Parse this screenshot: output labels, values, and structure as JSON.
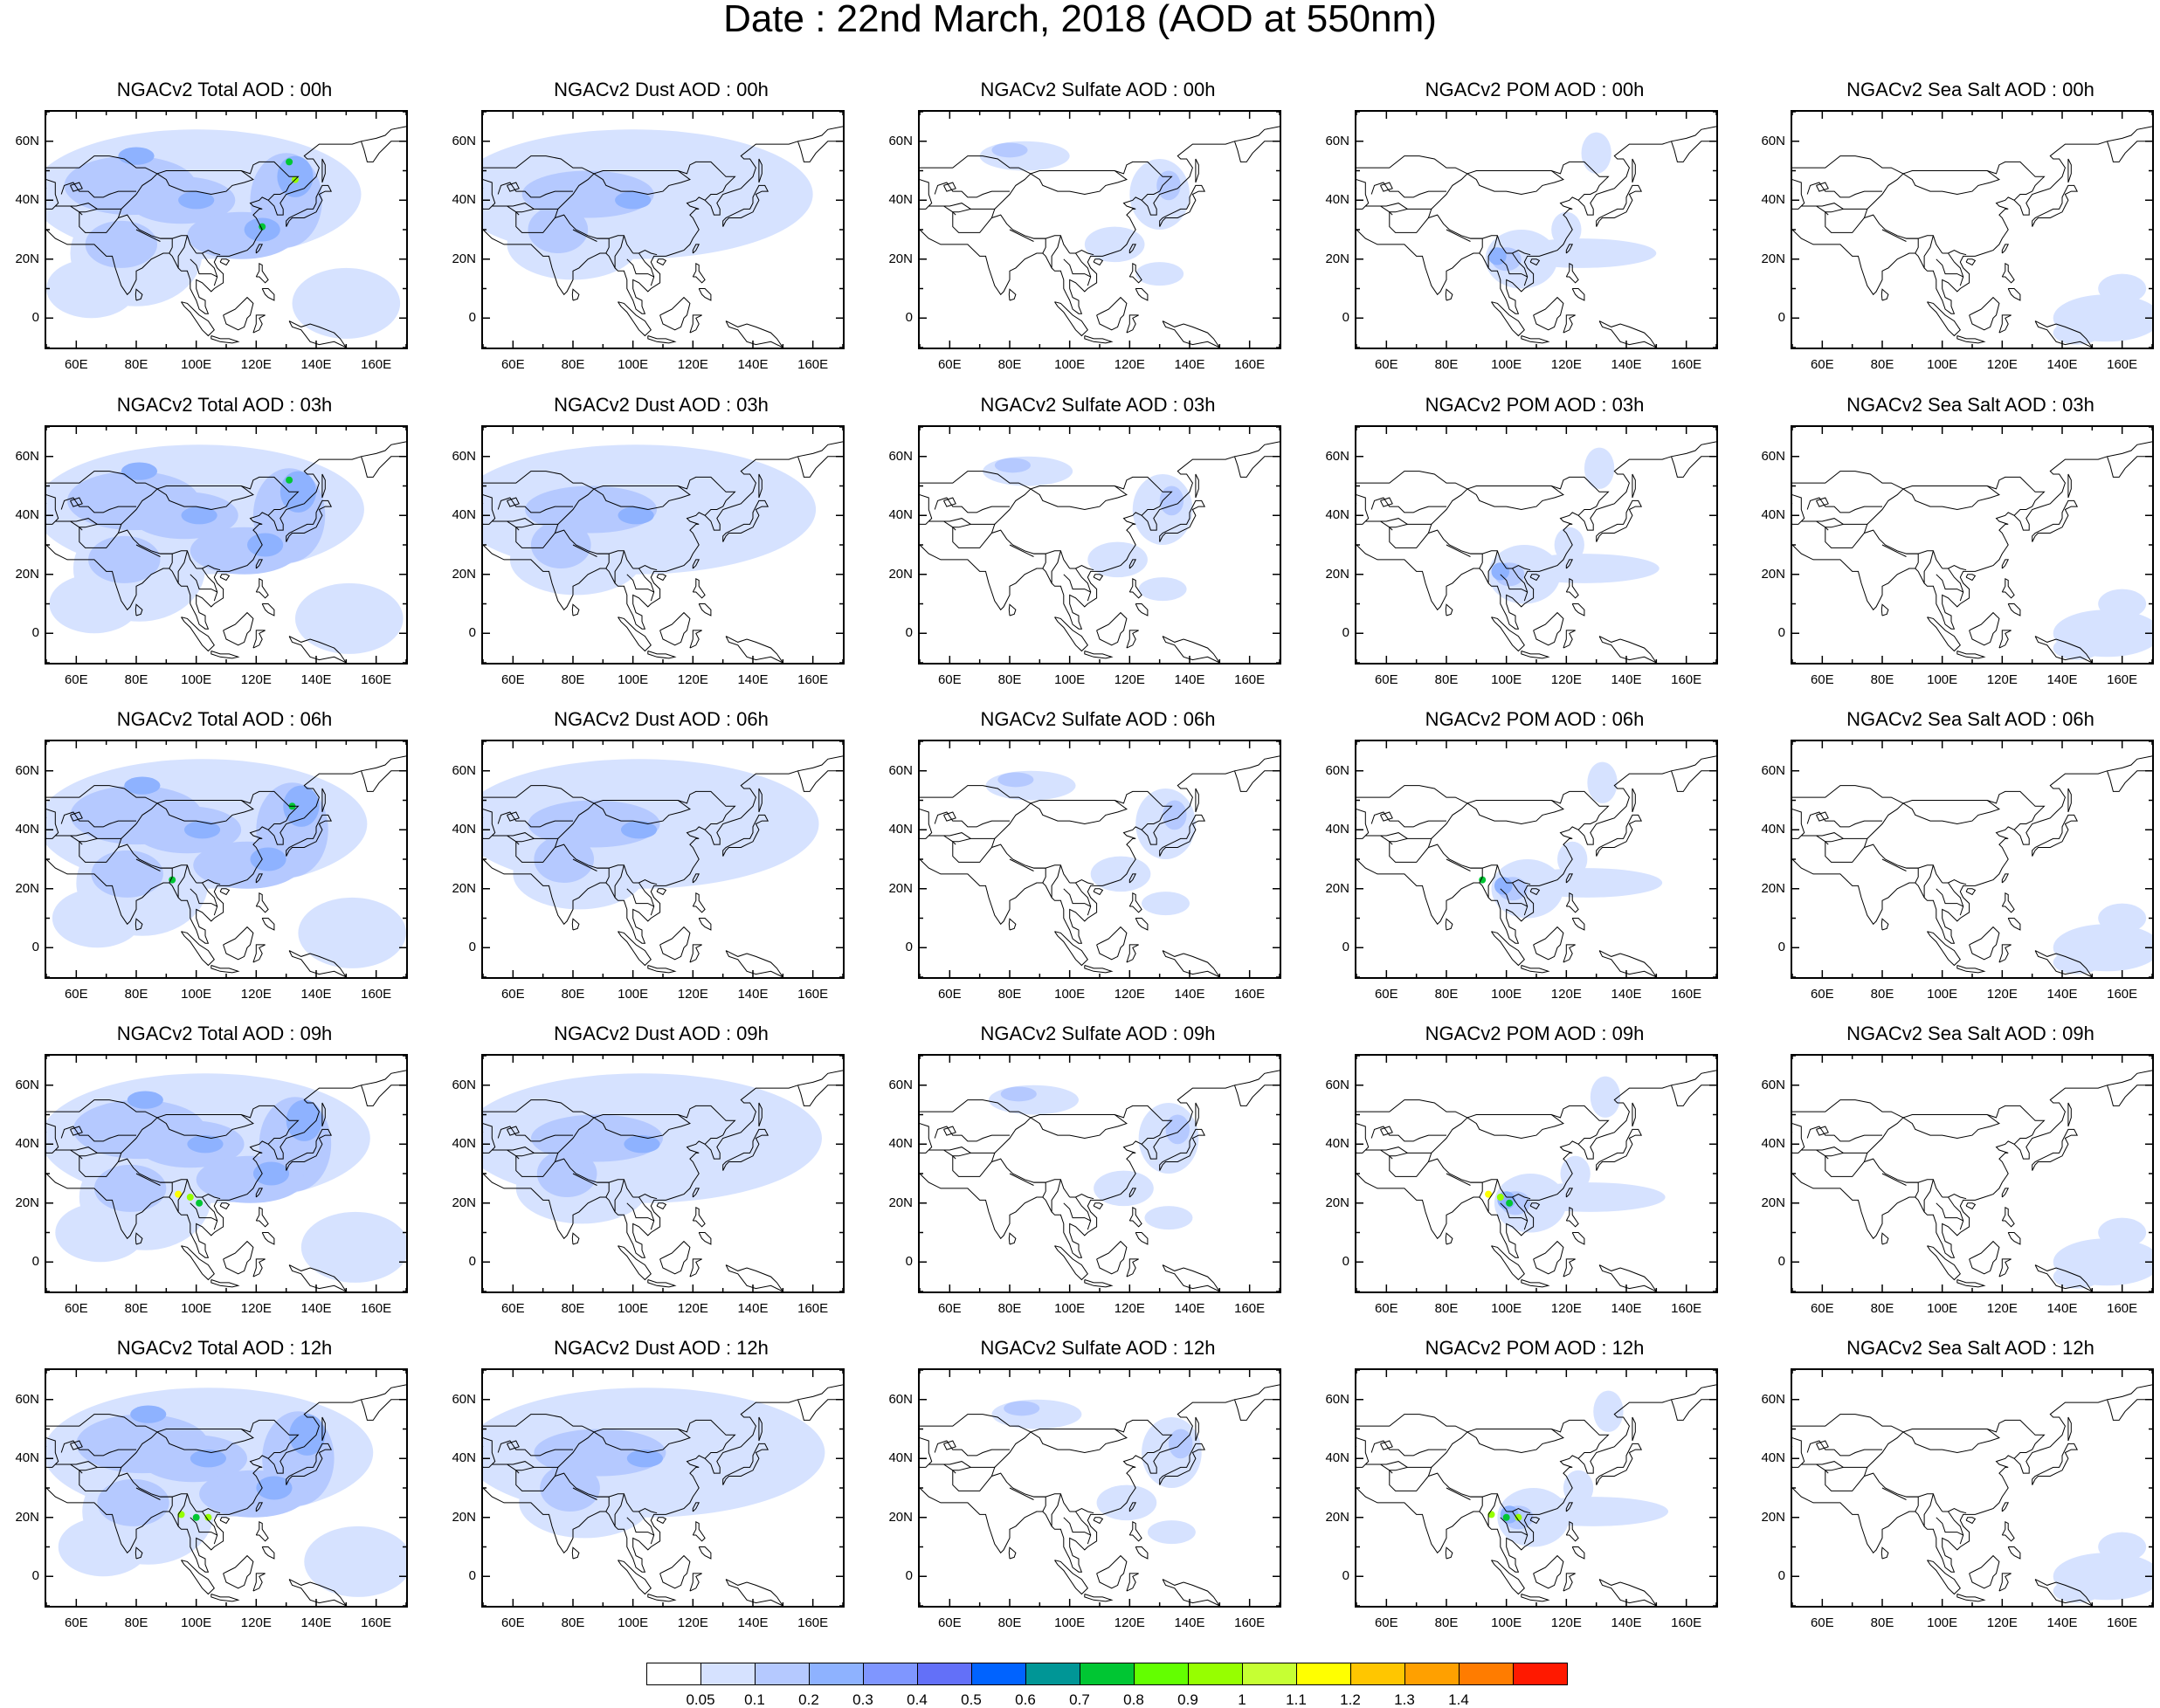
{
  "title": "Date : 22nd March, 2018 (AOD at 550nm)",
  "lat_labels": [
    "60N",
    "40N",
    "20N",
    "0"
  ],
  "lon_labels": [
    "60E",
    "80E",
    "100E",
    "120E",
    "140E",
    "160E"
  ],
  "map_extent": {
    "lon_min": 50,
    "lon_max": 170,
    "lat_min": -10,
    "lat_max": 70
  },
  "panel_titles": [
    [
      "NGACv2 Total AOD : 00h",
      "NGACv2 Dust AOD : 00h",
      "NGACv2 Sulfate AOD : 00h",
      "NGACv2 POM AOD : 00h",
      "NGACv2 Sea Salt AOD : 00h"
    ],
    [
      "NGACv2 Total AOD : 03h",
      "NGACv2 Dust AOD : 03h",
      "NGACv2 Sulfate AOD : 03h",
      "NGACv2 POM AOD : 03h",
      "NGACv2 Sea Salt AOD : 03h"
    ],
    [
      "NGACv2 Total AOD : 06h",
      "NGACv2 Dust AOD : 06h",
      "NGACv2 Sulfate AOD : 06h",
      "NGACv2 POM AOD : 06h",
      "NGACv2 Sea Salt AOD : 06h"
    ],
    [
      "NGACv2 Total AOD : 09h",
      "NGACv2 Dust AOD : 09h",
      "NGACv2 Sulfate AOD : 09h",
      "NGACv2 POM AOD : 09h",
      "NGACv2 Sea Salt  AOD : 09h"
    ],
    [
      "NGACv2 Total AOD  : 12h",
      "NGACv2 Dust AOD : 12h",
      "NGACv2 Sulfate AOD : 12h",
      "NGACv2 POM  AOD : 12h",
      "NGACv2 Sea Salt  AOD : 12h"
    ]
  ],
  "colorbar": {
    "labels": [
      "0.05",
      "0.1",
      "0.2",
      "0.3",
      "0.4",
      "0.5",
      "0.6",
      "0.7",
      "0.8",
      "0.9",
      "1",
      "1.1",
      "1.2",
      "1.3",
      "1.4"
    ],
    "colors": [
      "#ffffff",
      "#d6e2ff",
      "#b5c9ff",
      "#8eb2ff",
      "#7f96ff",
      "#6370f8",
      "#0063ff",
      "#009696",
      "#00c633",
      "#63ff00",
      "#96ff00",
      "#c6ff33",
      "#ffff00",
      "#ffc600",
      "#ffa000",
      "#ff7c00",
      "#ff1900"
    ]
  },
  "aerosol_colors": {
    "c1": "#d6e2ff",
    "c2": "#b5c9ff",
    "c3": "#8eb2ff",
    "c4": "#7f96ff",
    "c5": "#6370f8",
    "hot1": "#00c633",
    "hot2": "#96ff00",
    "hot3": "#ffff00",
    "hot4": "#ffc600"
  }
}
